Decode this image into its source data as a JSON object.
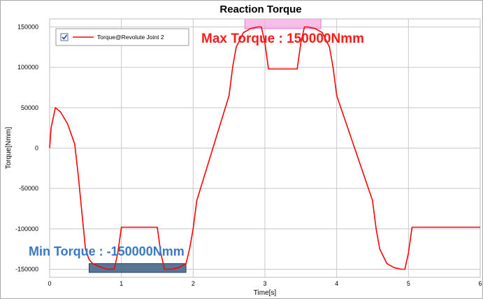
{
  "chart_data": {
    "type": "line",
    "title": "Reaction Torque",
    "xlabel": "Time[s]",
    "ylabel": "Torque[Nmm]",
    "xlim": [
      0,
      6
    ],
    "ylim": [
      -160000,
      160000
    ],
    "x_ticks": [
      0,
      1,
      2,
      3,
      4,
      5,
      6
    ],
    "y_ticks": [
      150000,
      100000,
      50000,
      0,
      -50000,
      -100000,
      -150000
    ],
    "y_tick_labels": [
      "150000",
      "100000",
      "50000",
      "0",
      "-50000",
      "-100000",
      "-150000"
    ],
    "x_tick_labels": [
      "0",
      "1",
      "2",
      "3",
      "4",
      "5",
      "6"
    ],
    "grid": true,
    "legend_position": "top-left",
    "series": [
      {
        "name": "Torque@Revolute Joint 2",
        "color": "#ff0000",
        "x": [
          0,
          0.02,
          0.08,
          0.15,
          0.25,
          0.35,
          0.4,
          0.45,
          0.5,
          0.55,
          0.6,
          0.7,
          0.8,
          0.9,
          0.95,
          1.0,
          1.05,
          1.5,
          1.55,
          1.6,
          1.7,
          1.8,
          1.9,
          1.95,
          2.0,
          2.05,
          2.5,
          2.55,
          2.6,
          2.7,
          2.8,
          2.9,
          2.95,
          3.0,
          3.05,
          3.45,
          3.5,
          3.55,
          3.6,
          3.7,
          3.8,
          3.9,
          3.95,
          4.0,
          4.5,
          4.55,
          4.6,
          4.7,
          4.8,
          4.9,
          4.95,
          5.0,
          5.05,
          6.0
        ],
        "y": [
          0,
          25000,
          50000,
          45000,
          30000,
          5000,
          -35000,
          -80000,
          -125000,
          -138000,
          -143000,
          -147000,
          -150000,
          -150000,
          -130000,
          -98000,
          -98000,
          -98000,
          -130000,
          -150000,
          -150000,
          -148000,
          -143000,
          -125000,
          -100000,
          -65000,
          65000,
          100000,
          125000,
          143000,
          148000,
          150000,
          150000,
          130000,
          98000,
          98000,
          130000,
          150000,
          150000,
          148000,
          143000,
          125000,
          100000,
          65000,
          -65000,
          -100000,
          -125000,
          -143000,
          -148000,
          -150000,
          -150000,
          -130000,
          -98000,
          -98000
        ]
      }
    ],
    "annotations": [
      {
        "text": "Max Torque : 150000Nmm",
        "color": "#ff1a1a",
        "highlight_x": [
          2.72,
          3.78
        ],
        "highlight_y": [
          148000,
          160000
        ],
        "highlight_color": "#f7a8e0"
      },
      {
        "text": "Min Torque : -150000Nmm",
        "color": "#3a78c4",
        "highlight_x": [
          0.55,
          1.9
        ],
        "highlight_y": [
          -154000,
          -143000
        ],
        "highlight_color": "#4f6f8f"
      }
    ]
  }
}
